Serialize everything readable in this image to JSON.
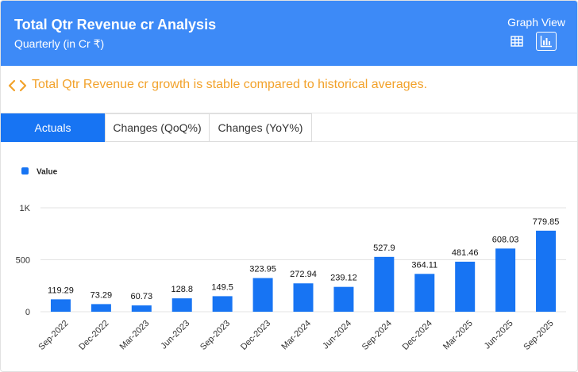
{
  "header": {
    "title": "Total Qtr Revenue cr Analysis",
    "subtitle": "Quarterly (in Cr ₹)",
    "view_label": "Graph View",
    "view_buttons": [
      {
        "icon": "table-view-icon",
        "active": false
      },
      {
        "icon": "bar-chart-view-icon",
        "active": true
      }
    ]
  },
  "insight": {
    "icon": "code-brackets-icon",
    "text": "Total Qtr Revenue cr growth is stable compared to historical averages."
  },
  "tabs": [
    {
      "label": "Actuals",
      "active": true
    },
    {
      "label": "Changes (QoQ%)",
      "active": false
    },
    {
      "label": "Changes (YoY%)",
      "active": false
    }
  ],
  "colors": {
    "header_bg": "#3d8af7",
    "accent": "#1774f3",
    "insight_text": "#f2a22b"
  },
  "chart_data": {
    "type": "bar",
    "legend": [
      "Value"
    ],
    "legend_position": "top-left",
    "categories": [
      "Sep-2022",
      "Dec-2022",
      "Mar-2023",
      "Jun-2023",
      "Sep-2023",
      "Dec-2023",
      "Mar-2024",
      "Jun-2024",
      "Sep-2024",
      "Dec-2024",
      "Mar-2025",
      "Jun-2025",
      "Sep-2025"
    ],
    "series": [
      {
        "name": "Value",
        "values": [
          119.29,
          73.29,
          60.73,
          128.8,
          149.5,
          323.95,
          272.94,
          239.12,
          527.9,
          364.11,
          481.46,
          608.03,
          779.85
        ]
      }
    ],
    "data_labels": [
      "119.29",
      "73.29",
      "60.73",
      "128.8",
      "149.5",
      "323.95",
      "272.94",
      "239.12",
      "527.9",
      "364.11",
      "481.46",
      "608.03",
      "779.85"
    ],
    "y_ticks": [
      0,
      500,
      1000
    ],
    "y_tick_labels": [
      "0",
      "500",
      "1K"
    ],
    "ylim": [
      0,
      1000
    ],
    "grid": true,
    "bar_color": "#1774f3"
  }
}
